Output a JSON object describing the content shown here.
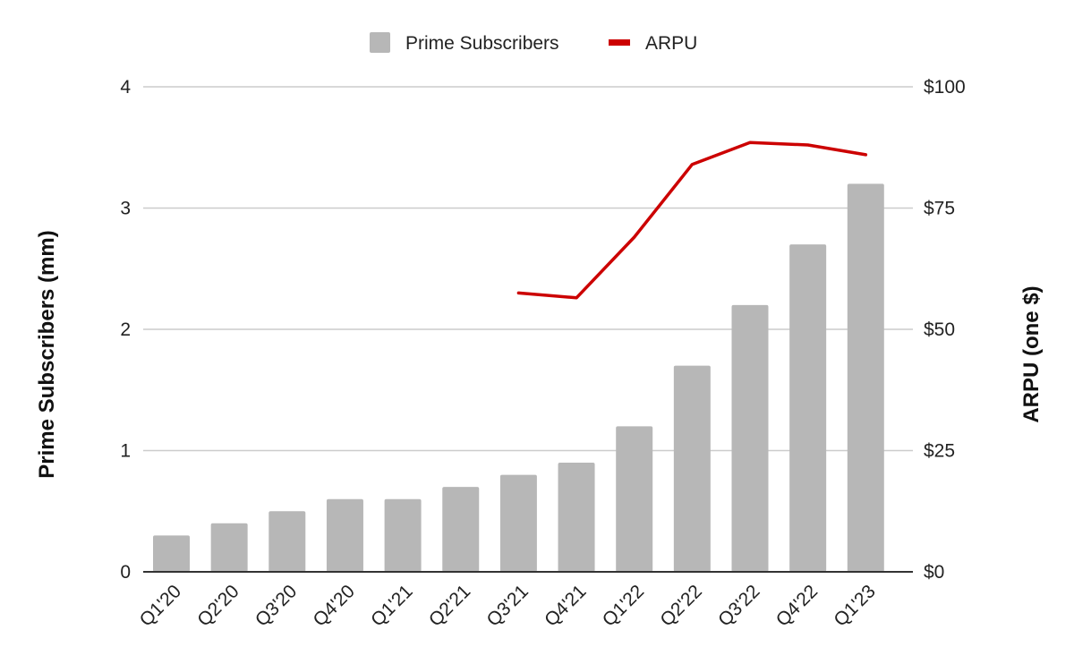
{
  "chart_data": {
    "type": "bar",
    "categories": [
      "Q1'20",
      "Q2'20",
      "Q3'20",
      "Q4'20",
      "Q1'21",
      "Q2'21",
      "Q3'21",
      "Q4'21",
      "Q1'22",
      "Q2'22",
      "Q3'22",
      "Q4'22",
      "Q1'23"
    ],
    "series": [
      {
        "name": "Prime Subscribers",
        "type": "bar",
        "axis": "left",
        "color": "#b7b7b7",
        "values": [
          0.3,
          0.4,
          0.5,
          0.6,
          0.6,
          0.7,
          0.8,
          0.9,
          1.2,
          1.7,
          2.2,
          2.7,
          3.2
        ]
      },
      {
        "name": "ARPU",
        "type": "line",
        "axis": "right",
        "color": "#cc0000",
        "values": [
          null,
          null,
          null,
          null,
          null,
          null,
          57.5,
          56.5,
          69,
          84,
          88.5,
          88,
          86
        ]
      }
    ],
    "left_axis": {
      "label": "Prime Subscribers (mm)",
      "ylim": [
        0,
        4
      ],
      "ticks": [
        {
          "value": 0,
          "label": "0"
        },
        {
          "value": 1,
          "label": "1"
        },
        {
          "value": 2,
          "label": "2"
        },
        {
          "value": 3,
          "label": "3"
        },
        {
          "value": 4,
          "label": "4"
        }
      ]
    },
    "right_axis": {
      "label": "ARPU (one $)",
      "ylim": [
        0,
        100
      ],
      "ticks": [
        {
          "value": 0,
          "label": "$0"
        },
        {
          "value": 25,
          "label": "$25"
        },
        {
          "value": 50,
          "label": "$50"
        },
        {
          "value": 75,
          "label": "$75"
        },
        {
          "value": 100,
          "label": "$100"
        }
      ]
    },
    "legend": {
      "position": "top-center",
      "entries": [
        {
          "label": "Prime Subscribers",
          "color": "#b7b7b7",
          "marker": "square"
        },
        {
          "label": "ARPU",
          "color": "#cc0000",
          "marker": "line"
        }
      ]
    },
    "grid": true,
    "xlabel_rotation": "-45deg",
    "colors": {
      "gridline": "#cccccc",
      "baseline": "#333333",
      "bar": "#b7b7b7",
      "line": "#cc0000"
    }
  }
}
